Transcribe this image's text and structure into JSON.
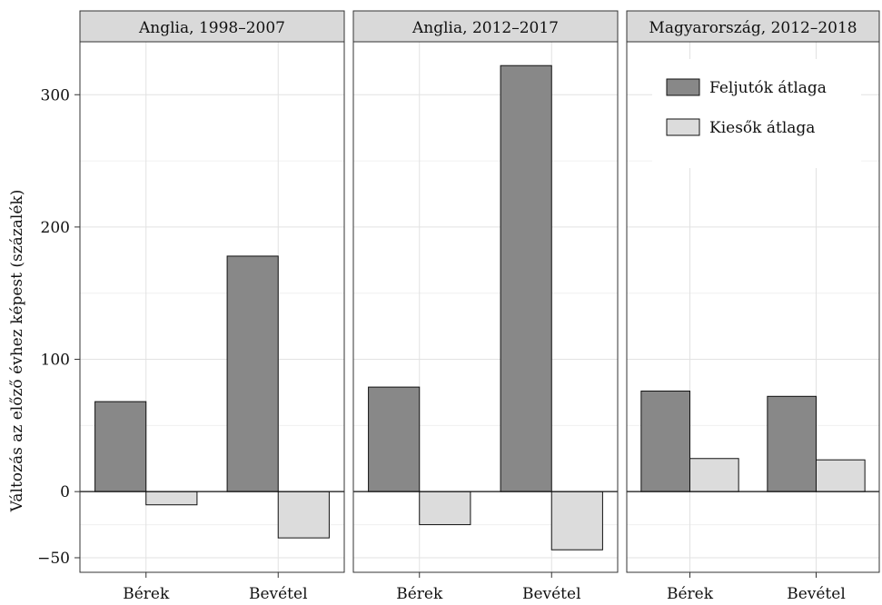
{
  "chart_data": {
    "type": "bar",
    "ylabel": "Változás az előző évhez képest (százalék)",
    "xlabel": "",
    "ylim": [
      -61,
      340
    ],
    "yticks": [
      -50,
      0,
      100,
      200,
      300
    ],
    "ytick_labels": [
      "−50",
      "0",
      "100",
      "200",
      "300"
    ],
    "categories": [
      "Bérek",
      "Bevétel"
    ],
    "grid": true,
    "legend_position": "top-right",
    "colors": {
      "Feljutók átlaga": "#888888",
      "Kiesők átlaga": "#dcdcdc"
    },
    "series_names": [
      "Feljutók átlaga",
      "Kiesők átlaga"
    ],
    "panels": [
      {
        "title": "Anglia, 1998–2007",
        "series": [
          {
            "name": "Feljutók átlaga",
            "values": [
              68,
              178
            ]
          },
          {
            "name": "Kiesők átlaga",
            "values": [
              -10,
              -35
            ]
          }
        ]
      },
      {
        "title": "Anglia, 2012–2017",
        "series": [
          {
            "name": "Feljutók átlaga",
            "values": [
              79,
              322
            ]
          },
          {
            "name": "Kiesők átlaga",
            "values": [
              -25,
              -44
            ]
          }
        ]
      },
      {
        "title": "Magyarország, 2012–2018",
        "series": [
          {
            "name": "Feljutók átlaga",
            "values": [
              76,
              72
            ]
          },
          {
            "name": "Kiesők átlaga",
            "values": [
              25,
              24
            ]
          }
        ]
      }
    ]
  }
}
